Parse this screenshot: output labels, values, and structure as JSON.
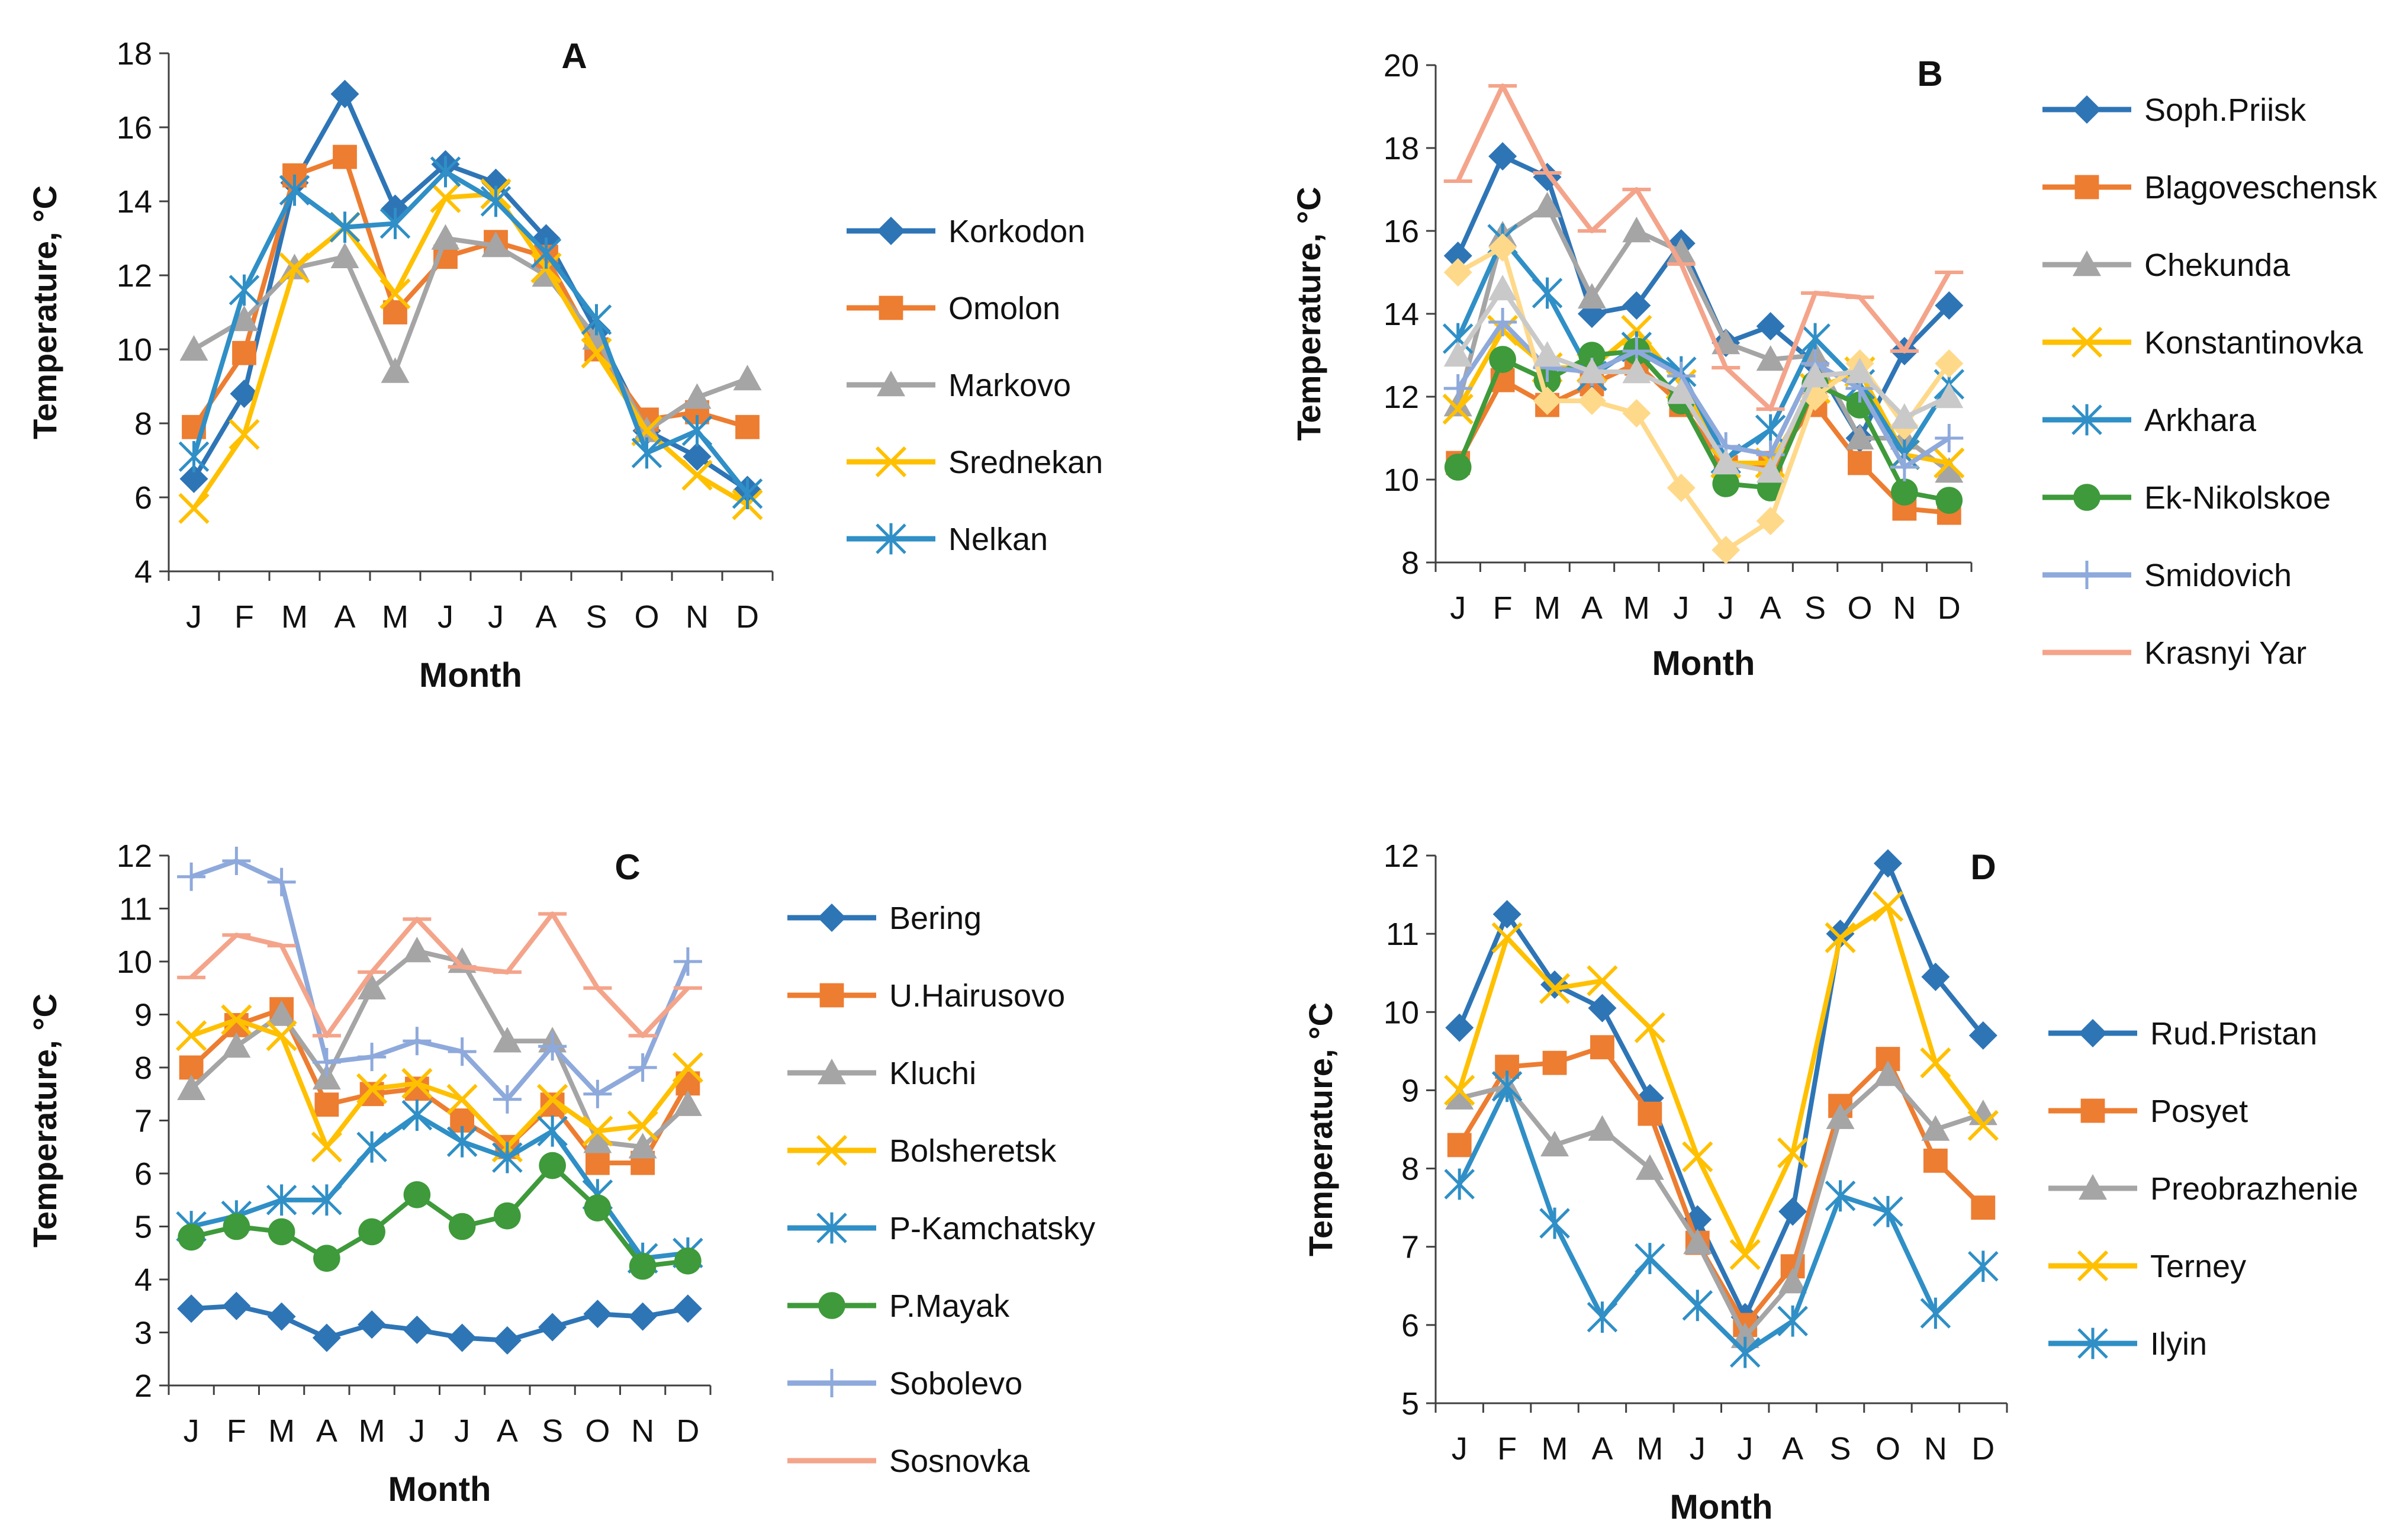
{
  "colors": {
    "blue": "#2E75B6",
    "orange": "#ED7D31",
    "gray": "#A5A5A5",
    "gold": "#FFC000",
    "teal": "#2F8FC6",
    "green": "#3E9A3A",
    "lightblue": "#8EA9DB",
    "salmon": "#F4A48A",
    "paleyellow": "#FFD98A",
    "lightgray": "#C9C9C9"
  },
  "chart_data": [
    {
      "panel": "A",
      "type": "line",
      "title": "A",
      "xlabel": "Month",
      "ylabel": "Temperature, °C",
      "categories": [
        "J",
        "F",
        "M",
        "A",
        "M",
        "J",
        "J",
        "A",
        "S",
        "O",
        "N",
        "D"
      ],
      "ylim": [
        4,
        18
      ],
      "yticks": [
        4,
        6,
        8,
        10,
        12,
        14,
        16,
        18
      ],
      "series": [
        {
          "name": "Korkodon",
          "color": "#2E75B6",
          "marker": "diamond",
          "values": [
            6.5,
            8.8,
            14.5,
            16.9,
            13.8,
            15.0,
            14.5,
            13.0,
            10.5,
            7.8,
            7.1,
            6.2
          ]
        },
        {
          "name": "Omolon",
          "color": "#ED7D31",
          "marker": "square",
          "values": [
            7.9,
            9.9,
            14.7,
            15.2,
            11.0,
            12.5,
            12.9,
            12.5,
            10.0,
            8.1,
            8.3,
            7.9
          ]
        },
        {
          "name": "Markovo",
          "color": "#A5A5A5",
          "marker": "triangle",
          "values": [
            10.0,
            10.8,
            12.2,
            12.5,
            9.4,
            13.0,
            12.8,
            12.0,
            10.3,
            7.8,
            8.7,
            9.2
          ]
        },
        {
          "name": "Srednekan",
          "color": "#FFC000",
          "marker": "x",
          "values": [
            5.7,
            7.7,
            12.2,
            13.3,
            11.5,
            14.1,
            14.2,
            12.2,
            9.9,
            7.8,
            6.6,
            5.8
          ]
        },
        {
          "name": "Nelkan",
          "color": "#2F8FC6",
          "marker": "star",
          "values": [
            7.1,
            11.6,
            14.3,
            13.3,
            13.4,
            14.8,
            14.0,
            12.6,
            10.8,
            7.2,
            7.8,
            6.1
          ]
        }
      ]
    },
    {
      "panel": "B",
      "type": "line",
      "title": "B",
      "xlabel": "Month",
      "ylabel": "Temperature, °C",
      "categories": [
        "J",
        "F",
        "M",
        "A",
        "M",
        "J",
        "J",
        "A",
        "S",
        "O",
        "N",
        "D"
      ],
      "ylim": [
        8,
        20
      ],
      "yticks": [
        8,
        10,
        12,
        14,
        16,
        18,
        20
      ],
      "series": [
        {
          "name": "Soph.Priisk",
          "color": "#2E75B6",
          "marker": "diamond",
          "values": [
            15.4,
            17.8,
            17.3,
            14.0,
            14.2,
            15.7,
            13.3,
            13.7,
            12.8,
            11.0,
            13.1,
            14.2
          ]
        },
        {
          "name": "Blagoveschensk",
          "color": "#ED7D31",
          "marker": "square",
          "values": [
            10.4,
            12.4,
            11.8,
            12.3,
            12.8,
            11.8,
            10.3,
            10.4,
            11.8,
            10.4,
            9.3,
            9.2
          ]
        },
        {
          "name": "Chekunda",
          "color": "#A5A5A5",
          "marker": "triangle",
          "values": [
            11.8,
            15.9,
            16.6,
            14.4,
            16.0,
            15.5,
            13.3,
            12.9,
            13.0,
            11.0,
            11.0,
            10.2
          ]
        },
        {
          "name": "Konstantinovka",
          "color": "#FFC000",
          "marker": "x",
          "values": [
            11.7,
            13.6,
            12.7,
            12.7,
            13.6,
            12.3,
            10.4,
            10.4,
            12.2,
            12.6,
            10.6,
            10.4
          ]
        },
        {
          "name": "Arkhara",
          "color": "#2F8FC6",
          "marker": "star",
          "values": [
            13.4,
            15.8,
            14.5,
            12.5,
            13.2,
            12.6,
            10.5,
            11.2,
            13.4,
            12.3,
            10.6,
            12.3
          ]
        },
        {
          "name": "Ek-Nikolskoe",
          "color": "#3E9A3A",
          "marker": "circle",
          "values": [
            10.3,
            12.9,
            12.4,
            13.0,
            13.1,
            11.9,
            9.9,
            9.8,
            12.3,
            11.8,
            9.7,
            9.5
          ]
        },
        {
          "name": "Smidovich",
          "color": "#8EA9DB",
          "marker": "plus",
          "values": [
            12.2,
            13.8,
            12.7,
            12.6,
            13.1,
            12.5,
            10.8,
            10.6,
            12.8,
            12.2,
            10.3,
            11.0
          ]
        },
        {
          "name": "Krasnyi Yar",
          "color": "#F4A48A",
          "marker": "dash",
          "values": [
            17.2,
            19.5,
            17.4,
            16.0,
            17.0,
            15.2,
            12.7,
            11.7,
            14.5,
            14.4,
            13.1,
            15.0
          ]
        },
        {
          "name": "",
          "color": "#FFD98A",
          "marker": "diamond",
          "values": [
            15.0,
            15.6,
            11.9,
            11.9,
            11.6,
            9.8,
            8.3,
            9.0,
            12.0,
            12.8,
            11.3,
            12.8
          ]
        },
        {
          "name": "",
          "color": "#C9C9C9",
          "marker": "triangle",
          "values": [
            13.0,
            14.6,
            13.0,
            12.6,
            12.6,
            12.1,
            10.4,
            10.2,
            12.5,
            12.6,
            11.5,
            12.0
          ]
        }
      ]
    },
    {
      "panel": "C",
      "type": "line",
      "title": "C",
      "xlabel": "Month",
      "ylabel": "Temperature, °C",
      "categories": [
        "J",
        "F",
        "M",
        "A",
        "M",
        "J",
        "J",
        "A",
        "S",
        "O",
        "N",
        "D"
      ],
      "ylim": [
        2,
        12
      ],
      "yticks": [
        2,
        3,
        4,
        5,
        6,
        7,
        8,
        9,
        10,
        11,
        12
      ],
      "series": [
        {
          "name": "Bering",
          "color": "#2E75B6",
          "marker": "diamond",
          "values": [
            3.45,
            3.5,
            3.3,
            2.9,
            3.15,
            3.05,
            2.9,
            2.85,
            3.1,
            3.35,
            3.3,
            3.45
          ]
        },
        {
          "name": "U.Hairusovo",
          "color": "#ED7D31",
          "marker": "square",
          "values": [
            8.0,
            8.8,
            9.1,
            7.3,
            7.5,
            7.6,
            7.0,
            6.5,
            7.3,
            6.2,
            6.2,
            7.7
          ]
        },
        {
          "name": "Kluchi",
          "color": "#A5A5A5",
          "marker": "triangle",
          "values": [
            7.6,
            8.4,
            9.0,
            7.8,
            9.5,
            10.2,
            10.0,
            8.5,
            8.5,
            6.6,
            6.5,
            7.3
          ]
        },
        {
          "name": "Bolsheretsk",
          "color": "#FFC000",
          "marker": "x",
          "values": [
            8.6,
            8.9,
            8.6,
            6.5,
            7.6,
            7.7,
            7.4,
            6.5,
            7.4,
            6.8,
            6.9,
            8.0
          ]
        },
        {
          "name": "P-Kamchatsky",
          "color": "#2F8FC6",
          "marker": "star",
          "values": [
            5.0,
            5.2,
            5.5,
            5.5,
            6.5,
            7.1,
            6.6,
            6.3,
            6.8,
            5.6,
            4.4,
            4.5
          ]
        },
        {
          "name": "P.Mayak",
          "color": "#3E9A3A",
          "marker": "circle",
          "values": [
            4.8,
            5.0,
            4.9,
            4.4,
            4.9,
            5.6,
            5.0,
            5.2,
            6.15,
            5.35,
            4.25,
            4.35
          ]
        },
        {
          "name": "Sobolevo",
          "color": "#8EA9DB",
          "marker": "plus",
          "values": [
            11.6,
            11.9,
            11.5,
            8.1,
            8.2,
            8.5,
            8.3,
            7.4,
            8.4,
            7.5,
            8.0,
            10.0
          ]
        },
        {
          "name": "Sosnovka",
          "color": "#F4A48A",
          "marker": "dash",
          "values": [
            9.7,
            10.5,
            10.3,
            8.6,
            9.8,
            10.8,
            9.9,
            9.8,
            10.9,
            9.5,
            8.6,
            9.5
          ]
        }
      ]
    },
    {
      "panel": "D",
      "type": "line",
      "title": "D",
      "xlabel": "Month",
      "ylabel": "Temperature, °C",
      "categories": [
        "J",
        "F",
        "M",
        "A",
        "M",
        "J",
        "J",
        "A",
        "S",
        "O",
        "N",
        "D"
      ],
      "ylim": [
        5,
        12
      ],
      "yticks": [
        5,
        6,
        7,
        8,
        9,
        10,
        11,
        12
      ],
      "series": [
        {
          "name": "Rud.Pristan",
          "color": "#2E75B6",
          "marker": "diamond",
          "values": [
            9.8,
            11.25,
            10.35,
            10.05,
            8.9,
            7.35,
            6.1,
            7.45,
            11.0,
            11.9,
            10.45,
            9.7
          ]
        },
        {
          "name": "Posyet",
          "color": "#ED7D31",
          "marker": "square",
          "values": [
            8.3,
            9.3,
            9.35,
            9.55,
            8.7,
            7.05,
            6.0,
            6.75,
            8.8,
            9.4,
            8.1,
            7.5
          ]
        },
        {
          "name": "Preobrazhenie",
          "color": "#A5A5A5",
          "marker": "triangle",
          "values": [
            8.9,
            9.05,
            8.3,
            8.5,
            8.0,
            7.05,
            5.85,
            6.55,
            8.65,
            9.2,
            8.5,
            8.7
          ]
        },
        {
          "name": "Terney",
          "color": "#FFC000",
          "marker": "x",
          "values": [
            9.0,
            10.95,
            10.3,
            10.4,
            9.8,
            8.15,
            6.9,
            8.2,
            10.95,
            11.35,
            9.35,
            8.55
          ]
        },
        {
          "name": "Ilyin",
          "color": "#2F8FC6",
          "marker": "star",
          "values": [
            7.8,
            9.05,
            7.3,
            6.1,
            6.85,
            6.25,
            5.65,
            6.05,
            7.65,
            7.45,
            6.15,
            6.75
          ]
        }
      ]
    }
  ]
}
